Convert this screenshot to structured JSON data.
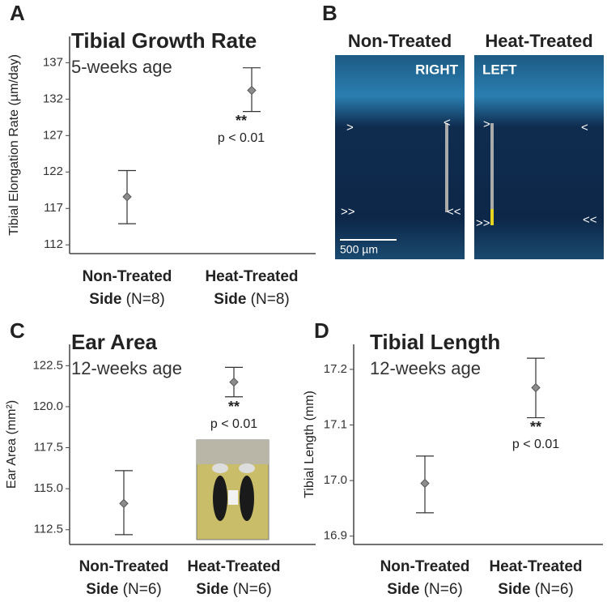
{
  "chart_data": [
    {
      "type": "errorbar",
      "panel": "A",
      "title": "Tibial Growth Rate",
      "subtitle": "5-weeks age",
      "ylabel": "Tibial Elongation Rate (µm/day)",
      "categories": [
        [
          "Non-Treated",
          "Side",
          "(N=8)"
        ],
        [
          "Heat-Treated",
          "Side",
          "(N=8)"
        ]
      ],
      "values": [
        118.6,
        133.2
      ],
      "upper": [
        122.2,
        136.3
      ],
      "lower": [
        114.9,
        130.3
      ],
      "color": "#8c8c8c",
      "ylim": [
        110.8,
        140.6
      ],
      "yticks": [
        112,
        117,
        122,
        127,
        132,
        137
      ],
      "annotations": [
        "**",
        "p < 0.01"
      ]
    },
    {
      "type": "errorbar",
      "panel": "C",
      "title": "Ear Area",
      "subtitle": "12-weeks age",
      "ylabel": "Ear Area (mm²)",
      "categories": [
        [
          "Non-Treated",
          "Side",
          "(N=6)"
        ],
        [
          "Heat-Treated",
          "Side",
          "(N=6)"
        ]
      ],
      "values": [
        114.1,
        121.5
      ],
      "upper": [
        116.1,
        122.4
      ],
      "lower": [
        112.2,
        120.6
      ],
      "color": "#8c8c8c",
      "ylim": [
        111.6,
        123.8
      ],
      "yticks": [
        112.5,
        {
          "value": 115,
          "label": "115.0"
        },
        117.5,
        {
          "value": 120,
          "label": "120.0"
        },
        122.5
      ],
      "annotations": [
        "**",
        "p < 0.01"
      ]
    },
    {
      "type": "errorbar",
      "panel": "D",
      "title": "Tibial Length",
      "subtitle": "12-weeks age",
      "ylabel": "Tibial Length (mm)",
      "categories": [
        [
          "Non-Treated",
          "Side",
          "(N=6)"
        ],
        [
          "Heat-Treated",
          "Side",
          "(N=6)"
        ]
      ],
      "values": [
        16.995,
        17.167
      ],
      "upper": [
        17.044,
        17.22
      ],
      "lower": [
        16.942,
        17.113
      ],
      "color": "#8c8c8c",
      "ylim": [
        16.885,
        17.245
      ],
      "yticks": [
        16.9,
        {
          "value": 17,
          "label": "17.0"
        },
        17.1,
        17.2
      ],
      "annotations": [
        "**",
        "p < 0.01"
      ]
    }
  ],
  "panel_b": {
    "panel": "B",
    "left": {
      "title": "Non-Treated",
      "side": "RIGHT",
      "markers": [
        ">",
        ">>",
        "<",
        "<<"
      ],
      "scale": "500 µm"
    },
    "right": {
      "title": "Heat-Treated",
      "side": "LEFT",
      "markers": [
        ">",
        ">>",
        "<",
        "<<"
      ]
    }
  }
}
